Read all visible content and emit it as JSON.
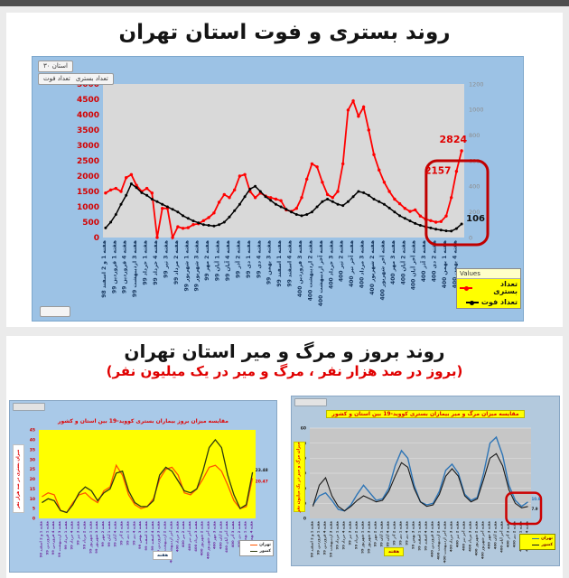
{
  "slide1": {
    "title": "روند بستری و فوت استان تهران",
    "province_button": "استان ۳۰",
    "series_button_labels": [
      "تعداد بستری",
      "تعداد فوت"
    ],
    "legend_header": "Values"
  },
  "slide2": {
    "title": "روند بروز و مرگ و میر استان تهران",
    "subtitle": "(بروز در صد هزار نفر ، مرگ و میر در یک میلیون نفر)"
  },
  "chart_data": [
    {
      "type": "line",
      "title": "روند بستری و فوت استان تهران",
      "xlabel": "هفته",
      "y_left": {
        "min": 0,
        "max": 5000,
        "step": 500,
        "applies_to": "تعداد بستری"
      },
      "y_right": {
        "min": 0,
        "max": 1200,
        "step": 200,
        "applies_to": "تعداد فوت"
      },
      "x_label_every": 2,
      "legend_position": "bottom-right",
      "categories": [
        "هفته 1 و 2 اسفند 98",
        "هفته 1 فروردین 99",
        "هفته 4 فروردین 99",
        "هفته 3 اردیبهشت 99",
        "هفته 1 خرداد 99",
        "هفته 4 خرداد 99",
        "هفته 3 تیر 99",
        "هفته 2 مرداد 99",
        "هفته 1 شهریور 99",
        "هفته 3 شهریور 99",
        "هفته 2 مهر 99",
        "هفته 1 آبان 99",
        "هفته 4 آبان 99",
        "هفته 2 آذر 99",
        "هفته 1 دی 99",
        "هفته 4 دی 99",
        "هفته 3 بهمن 99",
        "هفته 1 اسفند 99",
        "هفته 4 اسفند 99",
        "هفته 3 فروردین 400",
        "هفته 2 اردیبهشت 400",
        "هفته آخر اردیبهشت 400",
        "هفته 3 خرداد 400",
        "هفته 2 تیر 400",
        "هفته آخر تیر 400",
        "هفته 3 مرداد 400",
        "هفته 2 شهریور 400",
        "هفته آخر شهریور 400",
        "هفته 3 مهر 400",
        "هفته 2 آبان 400",
        "هفته آخر آبان 400",
        "هفته 3 آذر 400",
        "هفته 2 دی 400",
        "هفته 1 بهمن 400",
        "هفته 4 بهمن 400"
      ],
      "series": [
        {
          "name": "تعداد بستری",
          "color": "#ff0000",
          "axis": "left",
          "values": [
            1450,
            1550,
            1600,
            1500,
            1950,
            2050,
            1700,
            1500,
            1600,
            1450,
            0,
            950,
            950,
            0,
            350,
            300,
            320,
            420,
            450,
            550,
            650,
            800,
            1150,
            1400,
            1300,
            1550,
            2000,
            2050,
            1500,
            1300,
            1450,
            1350,
            1300,
            1250,
            1200,
            900,
            850,
            950,
            1300,
            1900,
            2400,
            2300,
            1800,
            1400,
            1300,
            1500,
            2400,
            4150,
            4450,
            3950,
            4250,
            3500,
            2700,
            2200,
            1800,
            1500,
            1250,
            1100,
            950,
            850,
            900,
            700,
            600,
            550,
            500,
            520,
            700,
            1300,
            2157,
            2824
          ]
        },
        {
          "name": "تعداد فوت",
          "color": "#000000",
          "axis": "right",
          "values": [
            75,
            120,
            180,
            260,
            330,
            420,
            390,
            350,
            330,
            300,
            280,
            260,
            240,
            220,
            200,
            170,
            150,
            130,
            115,
            100,
            95,
            90,
            100,
            120,
            160,
            210,
            260,
            320,
            380,
            400,
            360,
            320,
            290,
            260,
            240,
            220,
            200,
            180,
            170,
            180,
            200,
            240,
            280,
            300,
            280,
            260,
            250,
            280,
            320,
            360,
            350,
            330,
            300,
            280,
            260,
            230,
            200,
            170,
            150,
            130,
            110,
            95,
            85,
            75,
            65,
            58,
            52,
            50,
            70,
            106
          ]
        }
      ],
      "callouts": [
        {
          "text": "2824",
          "series": "تعداد بستری",
          "color": "#e00000"
        },
        {
          "text": "2157",
          "series": "تعداد بستری",
          "color": "#e00000"
        },
        {
          "text": "106",
          "series": "تعداد فوت",
          "color": "#111111"
        }
      ]
    },
    {
      "type": "line",
      "title": "مقایسه میزان بروز بیماران بستری کووید-19 بین استان و کشور",
      "ylabel": "میزان بستری در صد هزار نفر",
      "xlabel": "هفته",
      "ylim": [
        0,
        45
      ],
      "ystep": 5,
      "legend_position": "bottom-right",
      "categories": [
        "هفته 1 و 2 اسفند 98",
        "هفته 1 فروردین 99",
        "هفته 4 فروردین 99",
        "هفته 3 اردیبهشت 99",
        "هفته 1 خرداد 99",
        "هفته 4 خرداد 99",
        "هفته 3 تیر 99",
        "هفته 2 مرداد 99",
        "هفته 1 شهریور 99",
        "هفته 3 شهریور 99",
        "هفته 2 مهر 99",
        "هفته 1 آبان 99",
        "هفته 4 آبان 99",
        "هفته 2 آذر 99",
        "هفته 1 دی 99",
        "هفته 4 دی 99",
        "هفته 3 بهمن 99",
        "هفته 1 اسفند 99",
        "هفته 4 اسفند 99",
        "هفته 3 فروردین 400",
        "هفته 2 اردیبهشت 400",
        "هفته آخر اردیبهشت 400",
        "هفته 3 خرداد 400",
        "هفته 2 تیر 400",
        "هفته آخر تیر 400",
        "هفته 3 مرداد 400",
        "هفته 2 شهریور 400",
        "هفته آخر شهریور 400",
        "هفته 3 مهر 400",
        "هفته 2 آبان 400",
        "هفته آخر آبان 400",
        "هفته 3 آذر 400",
        "هفته 2 دی 400",
        "هفته 1 بهمن 400",
        "هفته 4 بهمن 400"
      ],
      "series": [
        {
          "name": "تهران",
          "color": "#ff5500",
          "values": [
            11,
            13,
            12,
            4,
            3,
            8,
            12,
            13,
            10,
            8,
            14,
            16,
            27,
            22,
            12,
            7,
            5,
            6,
            10,
            20,
            25,
            26,
            22,
            13,
            12,
            15,
            20,
            26,
            27,
            24,
            17,
            9,
            5,
            6,
            20.47
          ]
        },
        {
          "name": "کشور",
          "color": "#2e3b0e",
          "values": [
            8,
            10,
            9,
            4,
            3,
            7,
            13,
            16,
            14,
            9,
            13,
            15,
            23,
            24,
            14,
            8,
            6,
            6,
            9,
            22,
            26,
            24,
            19,
            14,
            13,
            15,
            24,
            36,
            40,
            36,
            22,
            12,
            5,
            7,
            23.48
          ]
        }
      ],
      "callouts": [
        {
          "text": "23.48",
          "series": "کشور",
          "color": "#1a1a1a"
        },
        {
          "text": "20.47",
          "series": "تهران",
          "color": "#e00000"
        }
      ]
    },
    {
      "type": "line",
      "title": "مقایسه میزان مرگ و میر بیماران بستری کووید-19 بین استان و کشور",
      "ylabel": "میزان مرگ و میر در یک میلیون نفر",
      "xlabel": "هفته",
      "ylim": [
        0,
        60
      ],
      "ystep": 10,
      "legend_position": "bottom-right",
      "categories": [
        "هفته 1 و 2 اسفند 98",
        "هفته 1 فروردین 99",
        "هفته 4 فروردین 99",
        "هفته 3 اردیبهشت 99",
        "هفته 1 خرداد 99",
        "هفته 4 خرداد 99",
        "هفته 3 تیر 99",
        "هفته 2 مرداد 99",
        "هفته 1 شهریور 99",
        "هفته 3 شهریور 99",
        "هفته 2 مهر 99",
        "هفته 1 آبان 99",
        "هفته 4 آبان 99",
        "هفته 2 آذر 99",
        "هفته 1 دی 99",
        "هفته 4 دی 99",
        "هفته 3 بهمن 99",
        "هفته 1 اسفند 99",
        "هفته 4 اسفند 99",
        "هفته 3 فروردین 400",
        "هفته 2 اردیبهشت 400",
        "هفته آخر اردیبهشت 400",
        "هفته 3 خرداد 400",
        "هفته 2 تیر 400",
        "هفته آخر تیر 400",
        "هفته 3 مرداد 400",
        "هفته 2 شهریور 400",
        "هفته آخر شهریور 400",
        "هفته 3 مهر 400",
        "هفته 2 آبان 400",
        "هفته آخر آبان 400",
        "هفته 3 آذر 400",
        "هفته 2 دی 400",
        "هفته 1 بهمن 400",
        "هفته 4 بهمن 400"
      ],
      "series": [
        {
          "name": "تهران",
          "color": "#2e75b6",
          "values": [
            9,
            15,
            17,
            12,
            6,
            5,
            9,
            16,
            22,
            17,
            12,
            13,
            20,
            35,
            45,
            40,
            22,
            11,
            9,
            10,
            18,
            32,
            36,
            30,
            16,
            12,
            14,
            30,
            50,
            54,
            42,
            22,
            12,
            8,
            10.9
          ]
        },
        {
          "name": "کشور",
          "color": "#1a1a1a",
          "values": [
            8,
            22,
            27,
            15,
            8,
            5,
            8,
            12,
            15,
            13,
            11,
            12,
            18,
            28,
            37,
            34,
            20,
            11,
            8,
            9,
            16,
            28,
            33,
            28,
            15,
            11,
            13,
            26,
            40,
            43,
            35,
            19,
            10,
            7,
            7.9
          ]
        }
      ],
      "callouts": [
        {
          "text": "10.9",
          "series": "تهران",
          "color": "#2e75b6"
        },
        {
          "text": "7.9",
          "series": "کشور",
          "color": "#1a1a1a"
        }
      ]
    }
  ]
}
